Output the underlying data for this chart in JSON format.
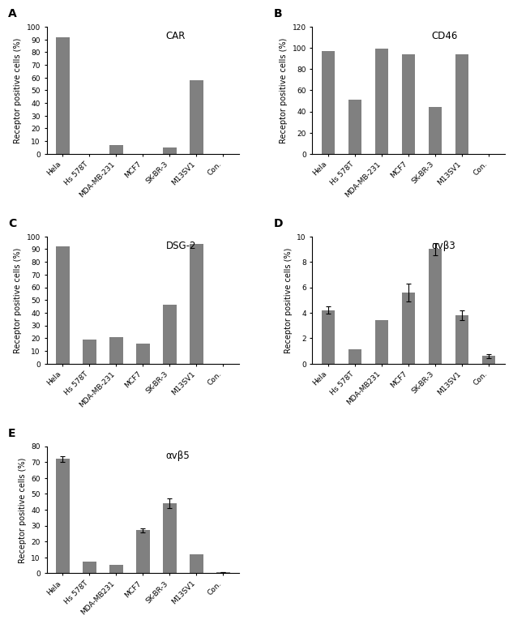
{
  "panels": [
    {
      "label": "A",
      "title": "CAR",
      "categories": [
        "Hela",
        "Hs 578T",
        "MDA-MB-231",
        "MCF7",
        "SK-BR-3",
        "M13SV1",
        "Con."
      ],
      "values": [
        92,
        0,
        7,
        0,
        5,
        58,
        0
      ],
      "errors": [
        null,
        null,
        null,
        null,
        null,
        null,
        null
      ],
      "ylim": [
        0,
        100
      ],
      "yticks": [
        0,
        10,
        20,
        30,
        40,
        50,
        60,
        70,
        80,
        90,
        100
      ]
    },
    {
      "label": "B",
      "title": "CD46",
      "categories": [
        "Hela",
        "Hs 578T",
        "MDA-MB-231",
        "MCF7",
        "SK-BR-3",
        "M13SV1",
        "Con."
      ],
      "values": [
        97,
        51,
        99,
        94,
        44,
        94,
        0
      ],
      "errors": [
        null,
        null,
        null,
        null,
        null,
        null,
        null
      ],
      "ylim": [
        0,
        120
      ],
      "yticks": [
        0,
        20,
        40,
        60,
        80,
        100,
        120
      ]
    },
    {
      "label": "C",
      "title": "DSG-2",
      "categories": [
        "Hela",
        "Hs 578T",
        "MDA-MB-231",
        "MCF7",
        "SK-BR-3",
        "M13SV1",
        "Con."
      ],
      "values": [
        92,
        19,
        21,
        16,
        46,
        94,
        0
      ],
      "errors": [
        null,
        null,
        null,
        null,
        null,
        null,
        null
      ],
      "ylim": [
        0,
        100
      ],
      "yticks": [
        0,
        10,
        20,
        30,
        40,
        50,
        60,
        70,
        80,
        90,
        100
      ]
    },
    {
      "label": "D",
      "title": "αvβ3",
      "categories": [
        "Hela",
        "Hs 578T",
        "MDA-MB231",
        "MCF7",
        "SK-BR-3",
        "M13SV1",
        "Con."
      ],
      "values": [
        4.2,
        1.1,
        3.4,
        5.6,
        9.0,
        3.8,
        0.6
      ],
      "errors": [
        0.3,
        null,
        null,
        0.7,
        0.5,
        0.4,
        0.15
      ],
      "ylim": [
        0,
        10
      ],
      "yticks": [
        0,
        2,
        4,
        6,
        8,
        10
      ]
    },
    {
      "label": "E",
      "title": "αvβ5",
      "categories": [
        "Hela",
        "Hs 578T",
        "MDA-MB231",
        "MCF7",
        "SK-BR-3",
        "M13SV1",
        "Con."
      ],
      "values": [
        72,
        7.5,
        5.5,
        27,
        44,
        12,
        0.8
      ],
      "errors": [
        1.8,
        null,
        null,
        1.5,
        3.0,
        null,
        0.15
      ],
      "ylim": [
        0,
        80
      ],
      "yticks": [
        0,
        10,
        20,
        30,
        40,
        50,
        60,
        70,
        80
      ]
    }
  ],
  "bar_color": "#808080",
  "bar_width": 0.5,
  "ylabel": "Receptor positive cells (%)",
  "tick_fontsize": 6.5,
  "label_fontsize": 7,
  "title_fontsize": 8.5,
  "panel_label_fontsize": 10
}
